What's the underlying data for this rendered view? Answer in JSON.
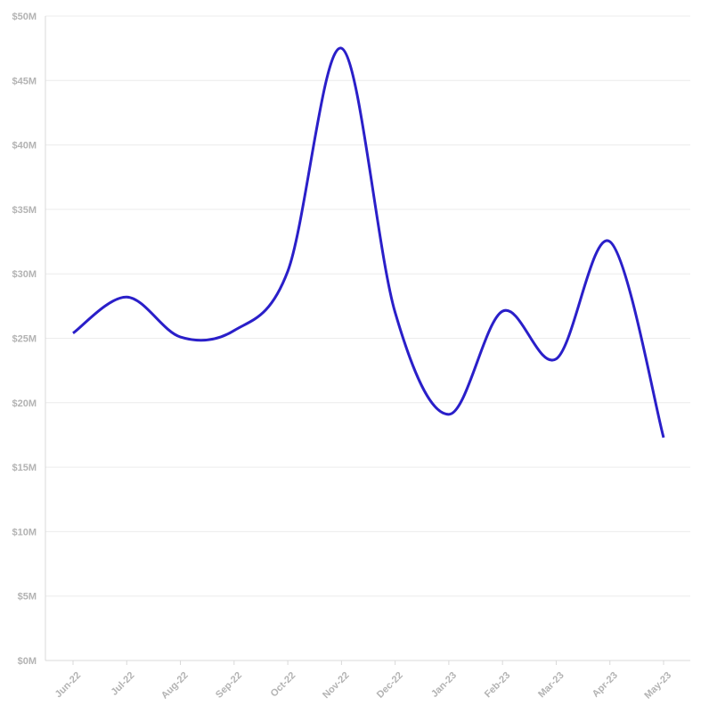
{
  "chart_data": {
    "type": "line",
    "title": "",
    "xlabel": "",
    "ylabel": "",
    "categories": [
      "Jun-22",
      "Jul-22",
      "Aug-22",
      "Sep-22",
      "Oct-22",
      "Nov-22",
      "Dec-22",
      "Jan-23",
      "Feb-23",
      "Mar-23",
      "Apr-23",
      "May-23"
    ],
    "series": [
      {
        "values": [
          25.4,
          28.2,
          25.1,
          25.6,
          30.2,
          47.5,
          27.0,
          19.1,
          27.1,
          23.4,
          32.5,
          17.3
        ]
      }
    ],
    "y_ticks": [
      "$0M",
      "$5M",
      "$10M",
      "$15M",
      "$20M",
      "$25M",
      "$30M",
      "$35M",
      "$40M",
      "$45M",
      "$50M"
    ],
    "ylim": [
      0,
      50
    ],
    "grid": true,
    "legend": "none",
    "colors": {
      "line": "#2a1fc9",
      "grid": "#ececec",
      "tick_text": "#b3b3b3"
    }
  }
}
